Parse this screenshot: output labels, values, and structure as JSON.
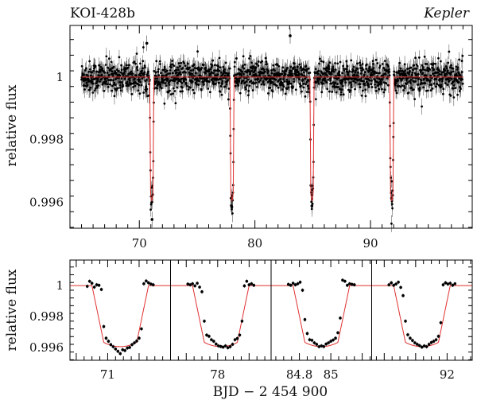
{
  "header": {
    "title": "KOI-428b",
    "mission": "Kepler"
  },
  "chart_data": [
    {
      "type": "scatter",
      "panel": "full-light-curve",
      "ylabel": "relative flux",
      "xlim": [
        64.0,
        98.8
      ],
      "ylim": [
        0.99517,
        1.00165
      ],
      "x_ticks": [
        70,
        80,
        90
      ],
      "y_ticks": [
        0.996,
        0.998,
        1
      ],
      "y_tick_labels": [
        "0.996",
        "0.998",
        "1"
      ],
      "grid": false,
      "baseline_flux": 1.0,
      "baseline_scatter": 0.00025,
      "time_range": [
        65.0,
        98.0
      ],
      "transit_mid_times": [
        71.08,
        78.02,
        84.94,
        91.84
      ],
      "transit_depth": 0.00395,
      "transit_total_duration": 0.36,
      "transit_ingress_duration": 0.075,
      "highlight_points": [
        {
          "x": 83.05,
          "y": 1.00132
        },
        {
          "x": 70.65,
          "y": 1.00108
        },
        {
          "x": 71.1,
          "y": 0.99545
        },
        {
          "x": 78.0,
          "y": 0.99585
        },
        {
          "x": 84.93,
          "y": 0.99588
        },
        {
          "x": 91.83,
          "y": 0.99612
        }
      ],
      "model_color": "#e03030",
      "point_color": "#000000"
    },
    {
      "type": "scatter",
      "panel": "phase-zoom",
      "ylabel": "relative flux",
      "xlabel": "BJD − 2 454 900",
      "ylim": [
        0.99517,
        1.00165
      ],
      "y_ticks": [
        0.996,
        0.998,
        1
      ],
      "y_tick_labels": [
        "0.996",
        "0.998",
        "1"
      ],
      "subpanels": [
        {
          "transit": 1,
          "center": 71.08,
          "xlim": [
            70.76,
            71.4
          ],
          "x_ticks": [
            71
          ],
          "x_tick_labels": [
            "71"
          ]
        },
        {
          "transit": 2,
          "center": 78.02,
          "xlim": [
            77.7,
            78.34
          ],
          "x_ticks": [
            78
          ],
          "x_tick_labels": [
            "78"
          ]
        },
        {
          "transit": 3,
          "center": 84.94,
          "xlim": [
            84.62,
            85.26
          ],
          "x_ticks": [
            84.8,
            85
          ],
          "x_tick_labels": [
            "84.8",
            "85"
          ]
        },
        {
          "transit": 4,
          "center": 91.84,
          "xlim": [
            91.52,
            92.16
          ],
          "x_ticks": [
            92
          ],
          "x_tick_labels": [
            "92"
          ]
        }
      ],
      "points_rel_time": [
        -0.21,
        -0.195,
        -0.18,
        -0.165,
        -0.15,
        -0.135,
        -0.12,
        -0.105,
        -0.09,
        -0.075,
        -0.06,
        -0.045,
        -0.03,
        -0.015,
        0.0,
        0.015,
        0.03,
        0.045,
        0.06,
        0.075,
        0.09,
        0.105,
        0.12,
        0.135,
        0.15,
        0.165,
        0.18,
        0.195,
        0.21
      ],
      "points_flux": [
        [
          0.99995,
          1.00028,
          1.00015,
          0.9999,
          1.00005,
          1.00002,
          0.99975,
          0.99735,
          0.9966,
          0.9964,
          0.99618,
          0.99605,
          0.9959,
          0.99575,
          0.9956,
          0.99585,
          0.9958,
          0.99596,
          0.996,
          0.99618,
          0.9963,
          0.99642,
          0.9966,
          0.9972,
          1.00012,
          1.0003,
          1.00018,
          1.0001,
          1.00005
        ],
        [
          1.0001,
          1.00005,
          1.00012,
          0.99998,
          1.00015,
          0.9999,
          0.9996,
          0.9977,
          0.9968,
          0.99672,
          0.9965,
          0.9964,
          0.99622,
          0.9961,
          0.99606,
          0.99602,
          0.9961,
          0.99598,
          0.99605,
          0.9962,
          0.9965,
          0.99658,
          0.9968,
          0.9977,
          0.99998,
          1.00028,
          1.00005,
          1.00012,
          1.00002
        ],
        [
          1.00008,
          1.00002,
          1.00015,
          1.00005,
          1.00012,
          1.00022,
          0.9997,
          0.9978,
          0.9969,
          0.9965,
          0.99646,
          0.9963,
          0.9962,
          0.99605,
          0.9961,
          0.99606,
          0.99622,
          0.9963,
          0.9964,
          0.99648,
          0.9966,
          0.99695,
          0.9979,
          1.00035,
          1.00028,
          1.00002,
          1.00012,
          1.00008,
          1.00005
        ],
        [
          1.00005,
          1.00018,
          1.00002,
          1.0001,
          1.00022,
          0.99988,
          0.99935,
          0.9977,
          0.99682,
          0.9966,
          0.99645,
          0.9963,
          0.9962,
          0.99612,
          0.99602,
          0.9961,
          0.99605,
          0.9962,
          0.99632,
          0.9964,
          0.9965,
          0.99672,
          0.9976,
          1.00005,
          1.00018,
          1.0001,
          1.00015,
          1.00002,
          1.00012
        ]
      ],
      "model_color": "#e03030",
      "point_color": "#000000"
    }
  ]
}
